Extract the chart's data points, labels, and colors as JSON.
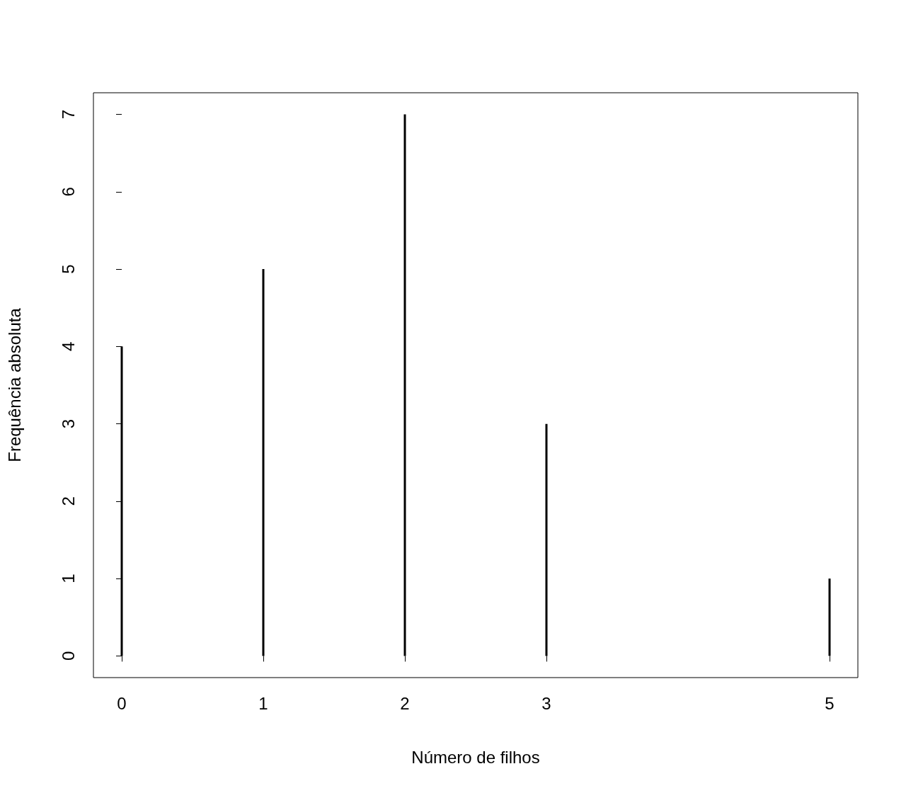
{
  "chart_data": {
    "type": "bar",
    "xlabel": "Número de filhos",
    "ylabel": "Frequência absoluta",
    "x": [
      0,
      1,
      2,
      3,
      5
    ],
    "values": [
      4,
      5,
      7,
      3,
      1
    ],
    "color": "#000000",
    "xlim": [
      -0.2,
      5.2
    ],
    "xticks": [
      0,
      1,
      2,
      3,
      5
    ],
    "ylim": [
      -0.28,
      7.28
    ],
    "yticks": [
      0,
      1,
      2,
      3,
      4,
      5,
      6,
      7
    ]
  }
}
